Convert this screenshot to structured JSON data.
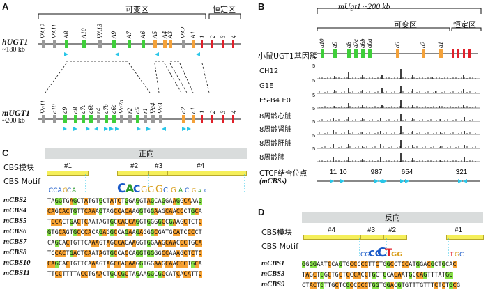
{
  "panels": {
    "A": "A",
    "B": "B",
    "C": "C",
    "D": "D"
  },
  "colors": {
    "pseudo": "#9a9a9a",
    "variable": "#3fcf3a",
    "variable_orange": "#f4a23a",
    "constant": "#e0202a",
    "cbs_arrow": "#29c6e8",
    "module": "#f5ef5a",
    "banner": "#d9dcdc",
    "seq_orange": "#f7a233",
    "seq_green": "#8ae34a"
  },
  "panelA": {
    "variable_label": "可变区",
    "constant_label": "恒定区",
    "human_gene": "hUGT1",
    "human_size": "~180 kb",
    "mouse_gene": "mUGT1",
    "mouse_size": "~200 kb",
    "human_exons": [
      "ΨA12",
      "ΨA11",
      "A8",
      "A10",
      "ΨA13",
      "A9",
      "A7",
      "A6",
      "A5",
      "A4",
      "A3",
      "ΨA2",
      "A1",
      "1",
      "2",
      "3",
      "4"
    ],
    "mouse_exons": [
      "Ψa11",
      "a10",
      "a9",
      "a8",
      "a7c",
      "a6b",
      "r4",
      "a7b",
      "a6a",
      "Ψa7a",
      "r2",
      "a5",
      "r1",
      "Ψa4",
      "Ψa3",
      "a2",
      "a1",
      "1",
      "2",
      "3",
      "4"
    ]
  },
  "panelB": {
    "title": "mUgt1 ~200 kb",
    "variable_label": "可变区",
    "constant_label": "恒定区",
    "cluster_label": "小鼠UGT1基因簇",
    "exons": [
      "a10",
      "a9",
      "a8",
      "a7c",
      "a6b",
      "a6a",
      "a5",
      "a2",
      "a1"
    ],
    "tracks": [
      {
        "label": "CH12",
        "scale": "5"
      },
      {
        "label": "G1E",
        "scale": "5"
      },
      {
        "label": "ES-B4 E0",
        "scale": "5"
      },
      {
        "label": "8周龄心脏",
        "scale": "5"
      },
      {
        "label": "8周龄肾脏",
        "scale": "5"
      },
      {
        "label": "8周龄肝脏",
        "scale": "5"
      },
      {
        "label": "8周龄肺",
        "scale": "5"
      }
    ],
    "ctcf_label": "CTCF结合位点",
    "mcbs_label": "(mCBSs)",
    "site_numbers": [
      "11",
      "10",
      "987",
      "654",
      "321"
    ]
  },
  "panelC": {
    "banner": "正向",
    "module_label": "CBS模块",
    "motif_label": "CBS Motif",
    "modules": [
      "#1",
      "#2",
      "#3",
      "#4"
    ],
    "rows": [
      {
        "name": "mCBS2",
        "seq": "TAGGTGAGCTATGTGCTATCTGGAGGTAGCAGGAAGGCAAAG"
      },
      {
        "name": "mCBS4",
        "seq": "CAGCACTGTTCAAAGTAGCCACAAGGTGGAAGCAACCCTGCA"
      },
      {
        "name": "mCBS5",
        "seq": "TCCACTGACTCAATAGTGCCACCAGGTGGGGCCGAAGCTCTC"
      },
      {
        "name": "mCBS6",
        "seq": "GTGCAGTGCCCACAGAGGCCAGAAGAGGGCGATGCATCCCCT"
      },
      {
        "name": "mCBS7",
        "seq": "CAGCACTGTTCAAAGTAGCCACAAGGTGGAAGCAACCCTGCA"
      },
      {
        "name": "mCBS8",
        "seq": "TCCACTGACTCAATAGTGCCACCAGGTGGGGCCAAAGCTCTC"
      },
      {
        "name": "mCBS10",
        "seq": "CAGCACTGTTCAAAGTAGCCACAAGGTGGAAGCAACCCTGCA"
      },
      {
        "name": "mCBS11",
        "seq": "TTCCTTTTACCTGAACTGCCGCTAGAAGGCGCCATCACATTC"
      }
    ]
  },
  "panelD": {
    "banner": "反向",
    "module_label": "CBS模块",
    "motif_label": "CBS Motif",
    "modules": [
      "#4",
      "#3",
      "#2",
      "#1"
    ],
    "rows": [
      {
        "name": "mCBS1",
        "seq": "GGGGAATCCAGTGCCCCCTTCTGGCCTCCATGGACGCTGCAC"
      },
      {
        "name": "mCBS3",
        "seq": "TAGCTGGCTGCTCCCACCTGCTGCACAATGCCAGTTTATGG"
      },
      {
        "name": "mCBS9",
        "seq": "CTACTGTTGCTCGCCCCCTGGTGGACGTGTTTGTTTCTCTGCG"
      }
    ]
  }
}
